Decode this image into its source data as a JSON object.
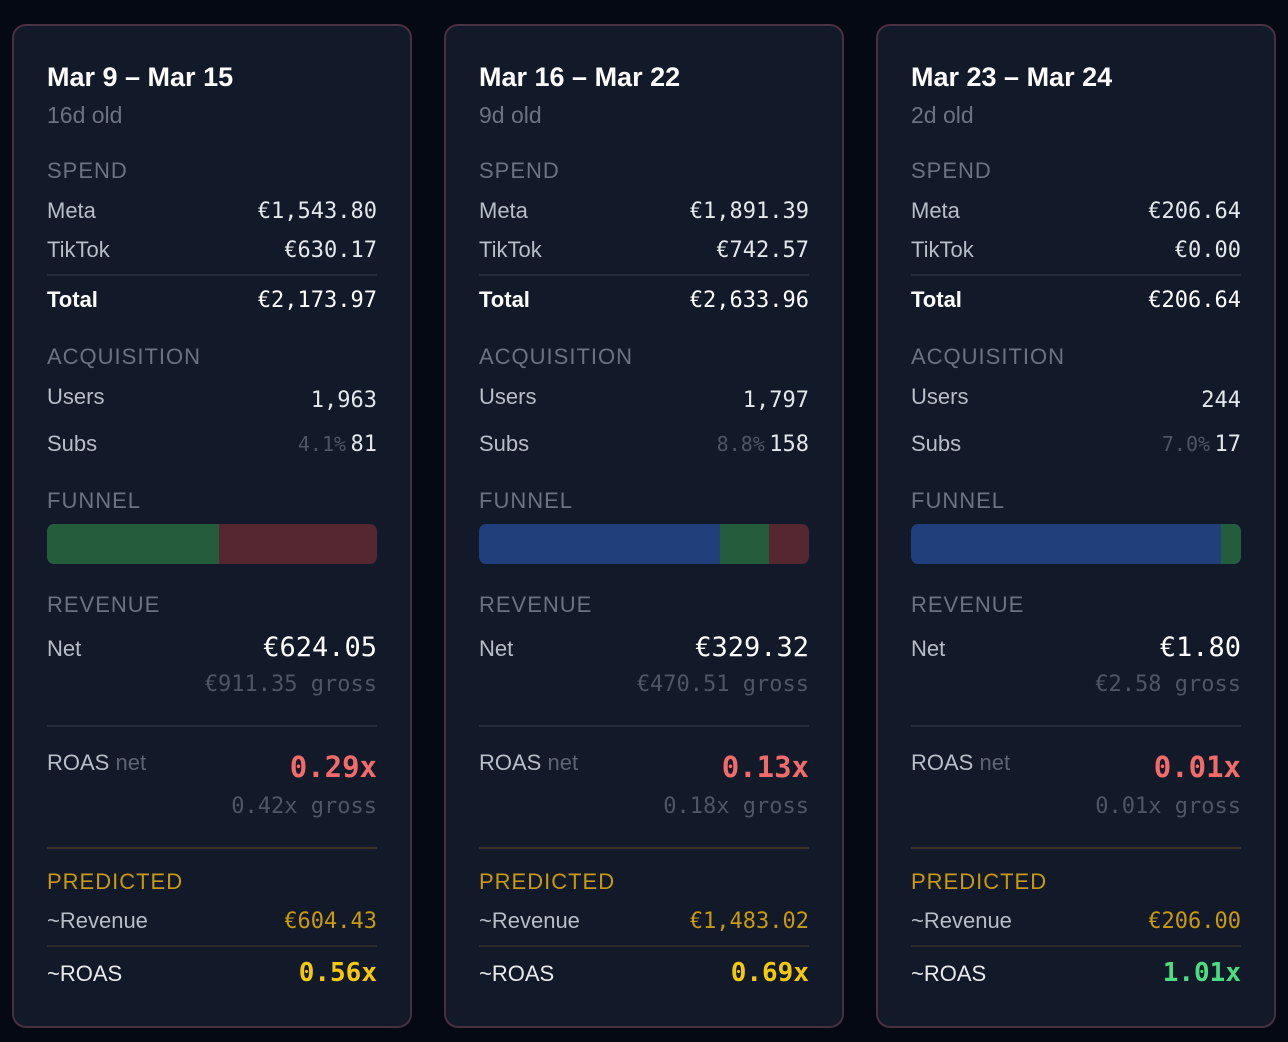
{
  "labels": {
    "spend": "SPEND",
    "meta": "Meta",
    "tiktok": "TikTok",
    "total": "Total",
    "acquisition": "ACQUISITION",
    "users": "Users",
    "subs": "Subs",
    "funnel": "FUNNEL",
    "revenue": "REVENUE",
    "net": "Net",
    "roas": "ROAS",
    "roas_net": "net",
    "predicted": "PREDICTED",
    "pred_revenue": "~Revenue",
    "pred_roas": "~ROAS"
  },
  "colors": {
    "funnel_blue": "#213f7a",
    "funnel_green": "#255c3c",
    "funnel_red": "#552731",
    "roas_red": "#f26b6b",
    "predicted_gold": "#c9990e",
    "roas_yellow": "#f5c80a",
    "roas_green": "#4ade80"
  },
  "cards": [
    {
      "title": "Mar 9 – Mar 15",
      "age": "16d old",
      "meta": "€1,543.80",
      "tiktok": "€630.17",
      "total": "€2,173.97",
      "users": "1,963",
      "sub_rate": "4.1%",
      "subs": "81",
      "funnel": {
        "blue": 0,
        "green": 52,
        "red": 48
      },
      "net": "€624.05",
      "gross": "€911.35 gross",
      "roas_net": "0.29x",
      "roas_gross": "0.42x gross",
      "pred_revenue": "€604.43",
      "pred_roas": "0.56x",
      "pred_roas_color": "#f5c80a"
    },
    {
      "title": "Mar 16 – Mar 22",
      "age": "9d old",
      "meta": "€1,891.39",
      "tiktok": "€742.57",
      "total": "€2,633.96",
      "users": "1,797",
      "sub_rate": "8.8%",
      "subs": "158",
      "funnel": {
        "blue": 73,
        "green": 15,
        "red": 12
      },
      "net": "€329.32",
      "gross": "€470.51 gross",
      "roas_net": "0.13x",
      "roas_gross": "0.18x gross",
      "pred_revenue": "€1,483.02",
      "pred_roas": "0.69x",
      "pred_roas_color": "#f5c80a"
    },
    {
      "title": "Mar 23 – Mar 24",
      "age": "2d old",
      "meta": "€206.64",
      "tiktok": "€0.00",
      "total": "€206.64",
      "users": "244",
      "sub_rate": "7.0%",
      "subs": "17",
      "funnel": {
        "blue": 94,
        "green": 6,
        "red": 0
      },
      "net": "€1.80",
      "gross": "€2.58 gross",
      "roas_net": "0.01x",
      "roas_gross": "0.01x gross",
      "pred_revenue": "€206.00",
      "pred_roas": "1.01x",
      "pred_roas_color": "#4ade80"
    }
  ]
}
